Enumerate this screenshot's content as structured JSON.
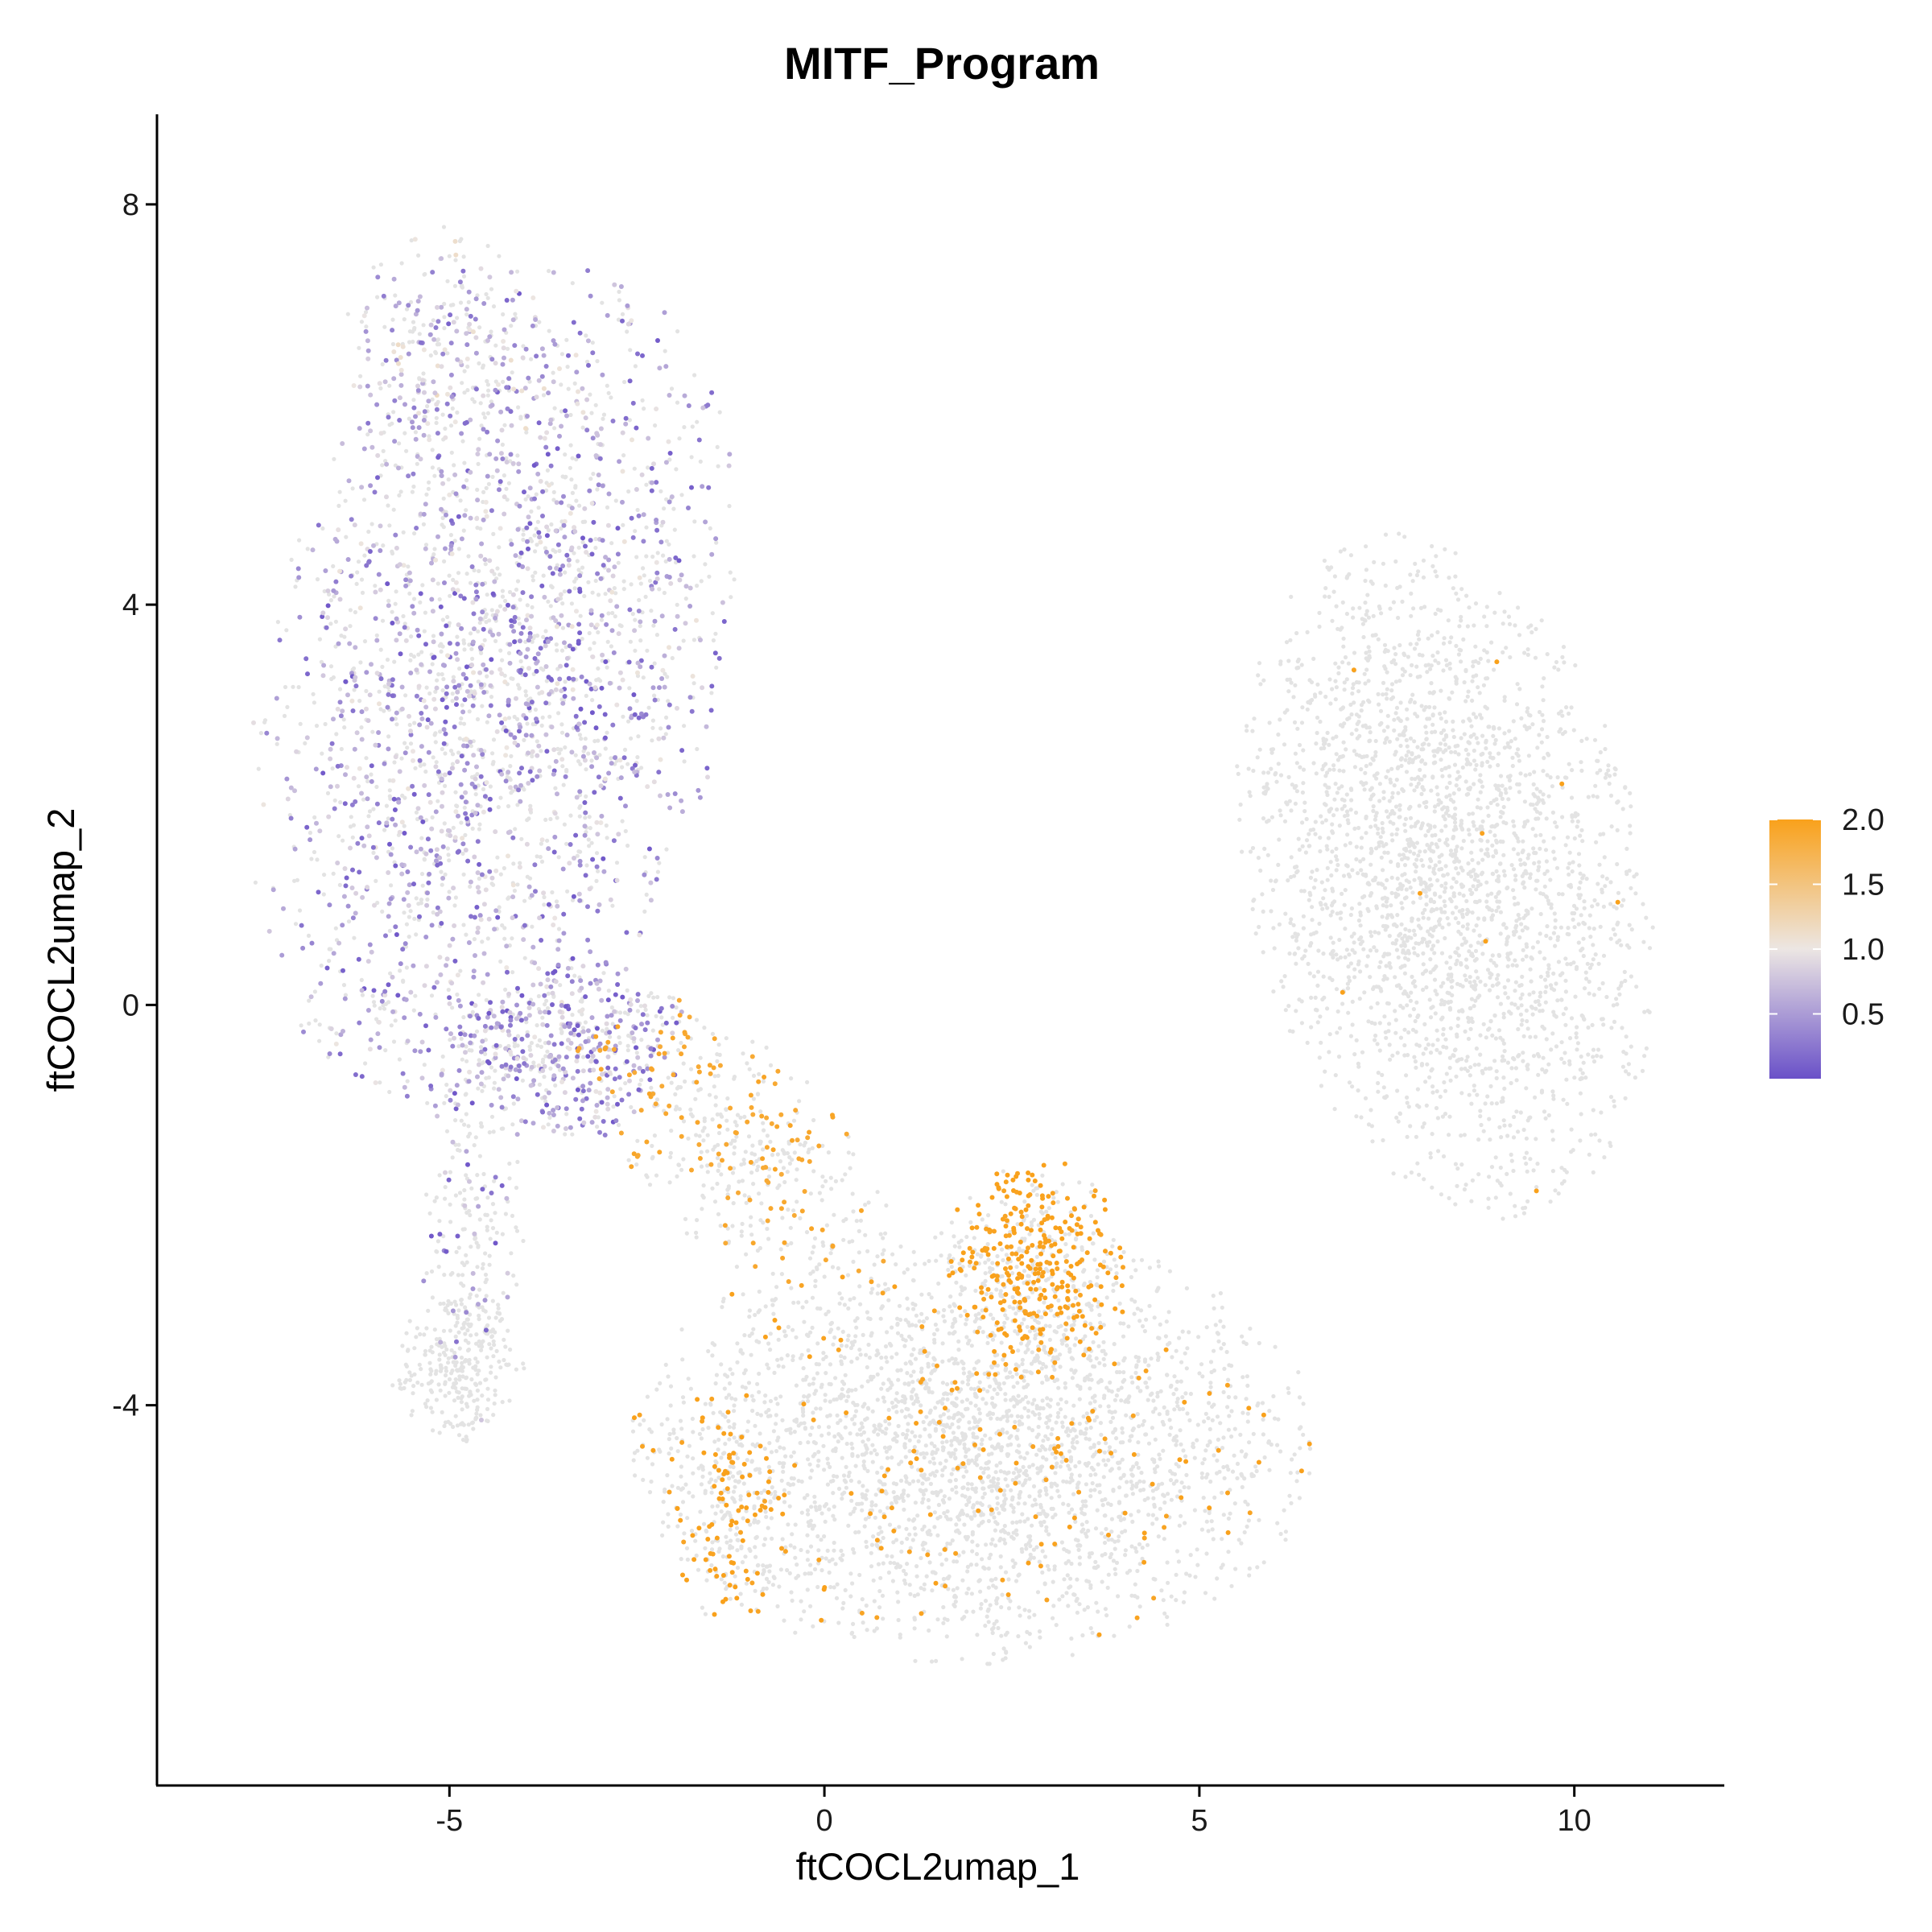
{
  "chart_data": {
    "type": "scatter",
    "title": "MITF_Program",
    "xlabel": "ftCOCL2umap_1",
    "ylabel": "ftCOCL2umap_2",
    "xlim": [
      -8.9,
      12.0
    ],
    "ylim": [
      -7.8,
      8.9
    ],
    "x_ticks": [
      -5,
      0,
      5,
      10
    ],
    "y_ticks": [
      -4,
      0,
      4,
      8
    ],
    "x_tick_labels": [
      "-5",
      "0",
      "5",
      "10"
    ],
    "y_tick_labels": [
      "-4",
      "0",
      "4",
      "8"
    ],
    "grid": false,
    "color_scale": {
      "label_values": [
        0.5,
        1.0,
        1.5,
        2.0
      ],
      "labels": [
        "0.5",
        "1.0",
        "1.5",
        "2.0"
      ],
      "min": 0.0,
      "max": 2.0,
      "low_color": "#6a51c8",
      "mid_color": "#ece6e3",
      "high_color": "#f9a11b",
      "na_color": "#e3e3e3",
      "legend_position": "right"
    },
    "clusters": [
      {
        "name": "upper-left lobe",
        "cx": -4.4,
        "cy": 3.2,
        "sx": 1.5,
        "sy": 2.2,
        "angle": -25,
        "n": 2400,
        "expr_frac": 0.55,
        "expr_mean": 0.55
      },
      {
        "name": "upper-left tip",
        "cx": -5.1,
        "cy": 6.4,
        "sx": 0.7,
        "sy": 0.7,
        "angle": 0,
        "n": 300,
        "expr_frac": 0.5,
        "expr_mean": 0.7
      },
      {
        "name": "left neck",
        "cx": -3.6,
        "cy": -0.4,
        "sx": 0.9,
        "sy": 0.5,
        "angle": 0,
        "n": 500,
        "expr_frac": 0.7,
        "expr_mean": 0.5
      },
      {
        "name": "left stalk",
        "cx": -4.7,
        "cy": -2.3,
        "sx": 0.35,
        "sy": 1.0,
        "angle": 0,
        "n": 220,
        "expr_frac": 0.2,
        "expr_mean": 0.4
      },
      {
        "name": "bottom-left blob",
        "cx": -4.9,
        "cy": -3.6,
        "sx": 0.45,
        "sy": 0.4,
        "angle": 0,
        "n": 260,
        "expr_frac": 0.0,
        "expr_mean": 0.0
      },
      {
        "name": "bridge",
        "cx": -1.2,
        "cy": -1.4,
        "sx": 1.2,
        "sy": 0.55,
        "angle": -30,
        "n": 450,
        "expr_frac": 0.3,
        "expr_mean": 1.9
      },
      {
        "name": "lower-middle body",
        "cx": 2.0,
        "cy": -4.4,
        "sx": 2.3,
        "sy": 1.1,
        "angle": 0,
        "n": 3000,
        "expr_frac": 0.05,
        "expr_mean": 2.0
      },
      {
        "name": "orange hotspot",
        "cx": 2.8,
        "cy": -2.6,
        "sx": 0.6,
        "sy": 0.55,
        "angle": 0,
        "n": 450,
        "expr_frac": 0.65,
        "expr_mean": 2.0
      },
      {
        "name": "lower-left orange patch",
        "cx": -1.3,
        "cy": -5.0,
        "sx": 0.45,
        "sy": 0.6,
        "angle": 0,
        "n": 220,
        "expr_frac": 0.45,
        "expr_mean": 2.0
      },
      {
        "name": "right lobe",
        "cx": 8.3,
        "cy": 1.3,
        "sx": 1.3,
        "sy": 1.8,
        "angle": 25,
        "n": 2600,
        "expr_frac": 0.004,
        "expr_mean": 2.0
      }
    ]
  }
}
